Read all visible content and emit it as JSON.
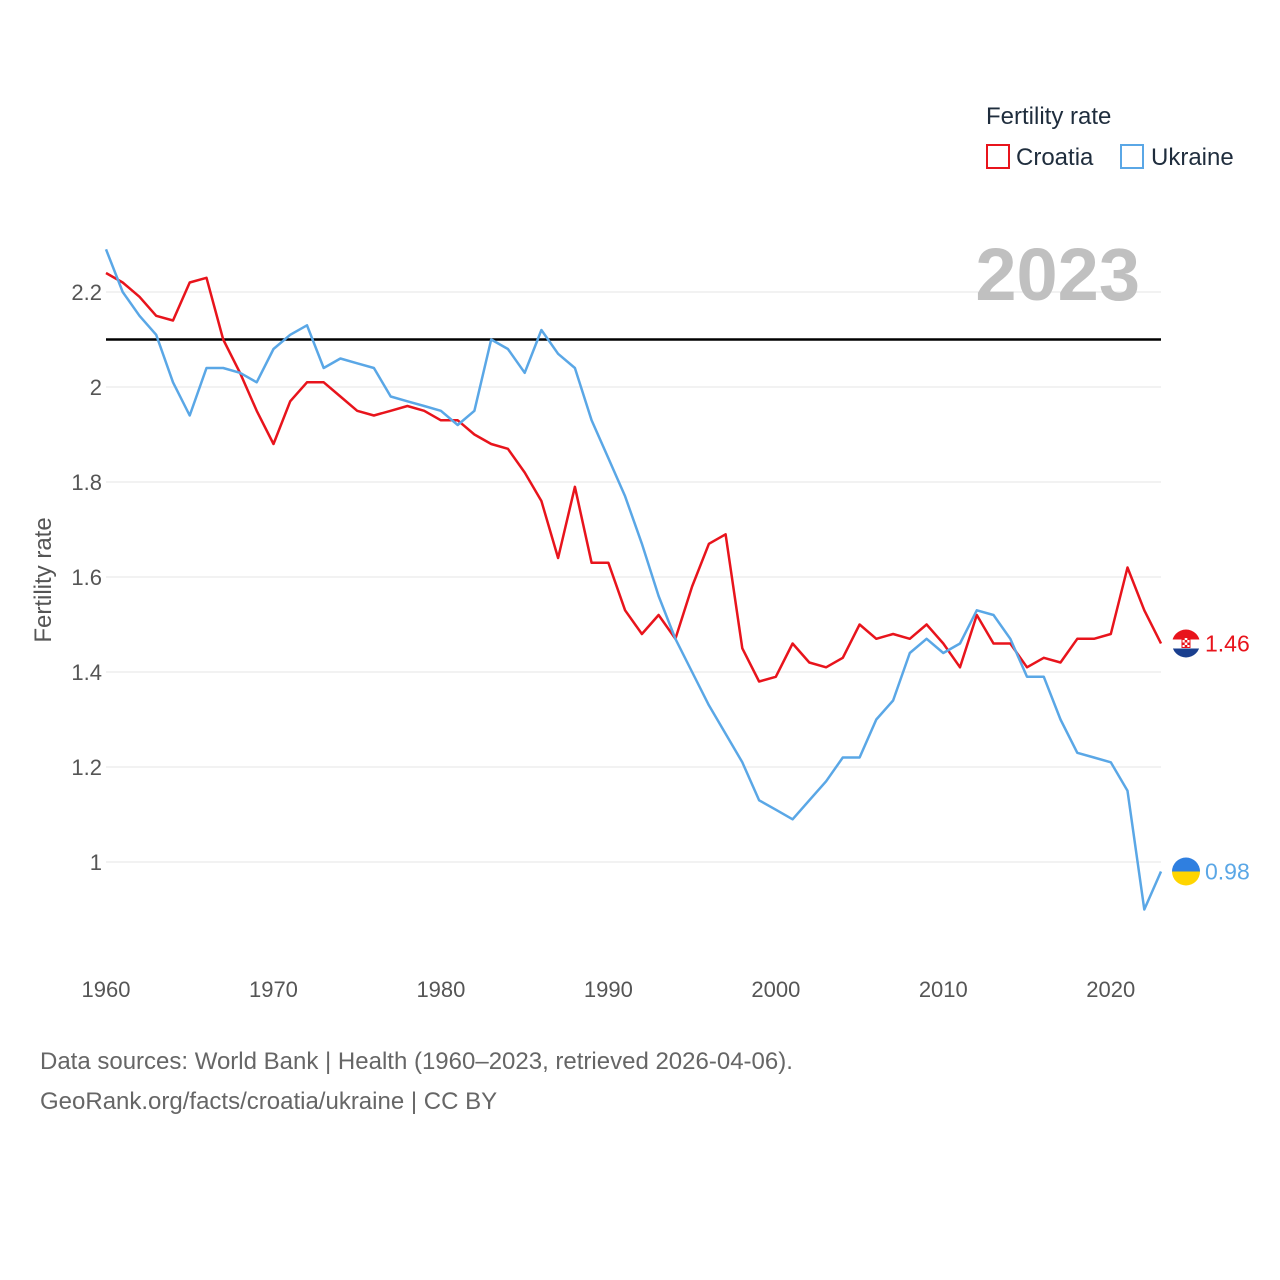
{
  "chart_data": {
    "type": "line",
    "title": "2023",
    "ylabel": "Fertility rate",
    "xlabel": "",
    "legend_title": "Fertility rate",
    "legend_position": "top-right",
    "xlim": [
      1960,
      2023
    ],
    "ylim": [
      0.8,
      2.35
    ],
    "x_ticks": [
      1960,
      1970,
      1980,
      1990,
      2000,
      2010,
      2020
    ],
    "y_ticks": [
      1,
      1.2,
      1.4,
      1.6,
      1.8,
      2,
      2.2
    ],
    "reference_line": 2.1,
    "x": [
      1960,
      1961,
      1962,
      1963,
      1964,
      1965,
      1966,
      1967,
      1968,
      1969,
      1970,
      1971,
      1972,
      1973,
      1974,
      1975,
      1976,
      1977,
      1978,
      1979,
      1980,
      1981,
      1982,
      1983,
      1984,
      1985,
      1986,
      1987,
      1988,
      1989,
      1990,
      1991,
      1992,
      1993,
      1994,
      1995,
      1996,
      1997,
      1998,
      1999,
      2000,
      2001,
      2002,
      2003,
      2004,
      2005,
      2006,
      2007,
      2008,
      2009,
      2010,
      2011,
      2012,
      2013,
      2014,
      2015,
      2016,
      2017,
      2018,
      2019,
      2020,
      2021,
      2022,
      2023
    ],
    "series": [
      {
        "name": "Croatia",
        "color": "#e8141c",
        "end_label": "1.46",
        "values": [
          2.24,
          2.22,
          2.19,
          2.15,
          2.14,
          2.22,
          2.23,
          2.1,
          2.03,
          1.95,
          1.88,
          1.97,
          2.01,
          2.01,
          1.98,
          1.95,
          1.94,
          1.95,
          1.96,
          1.95,
          1.93,
          1.93,
          1.9,
          1.88,
          1.87,
          1.82,
          1.76,
          1.64,
          1.79,
          1.63,
          1.63,
          1.53,
          1.48,
          1.52,
          1.47,
          1.58,
          1.67,
          1.69,
          1.45,
          1.38,
          1.39,
          1.46,
          1.42,
          1.41,
          1.43,
          1.5,
          1.47,
          1.48,
          1.47,
          1.5,
          1.46,
          1.41,
          1.52,
          1.46,
          1.46,
          1.41,
          1.43,
          1.42,
          1.47,
          1.47,
          1.48,
          1.62,
          1.53,
          1.46
        ]
      },
      {
        "name": "Ukraine",
        "color": "#5aa7e6",
        "end_label": "0.98",
        "values": [
          2.29,
          2.2,
          2.15,
          2.11,
          2.01,
          1.94,
          2.04,
          2.04,
          2.03,
          2.01,
          2.08,
          2.11,
          2.13,
          2.04,
          2.06,
          2.05,
          2.04,
          1.98,
          1.97,
          1.96,
          1.95,
          1.92,
          1.95,
          2.1,
          2.08,
          2.03,
          2.12,
          2.07,
          2.04,
          1.93,
          1.85,
          1.77,
          1.67,
          1.56,
          1.47,
          1.4,
          1.33,
          1.27,
          1.21,
          1.13,
          1.11,
          1.09,
          1.13,
          1.17,
          1.22,
          1.22,
          1.3,
          1.34,
          1.44,
          1.47,
          1.44,
          1.46,
          1.53,
          1.52,
          1.47,
          1.39,
          1.39,
          1.3,
          1.23,
          1.22,
          1.21,
          1.15,
          0.9,
          0.98
        ]
      }
    ]
  },
  "source": {
    "line1": "Data sources: World Bank | Health (1960–2023, retrieved 2026-04-06).",
    "line2": "GeoRank.org/facts/croatia/ukraine | CC BY"
  }
}
